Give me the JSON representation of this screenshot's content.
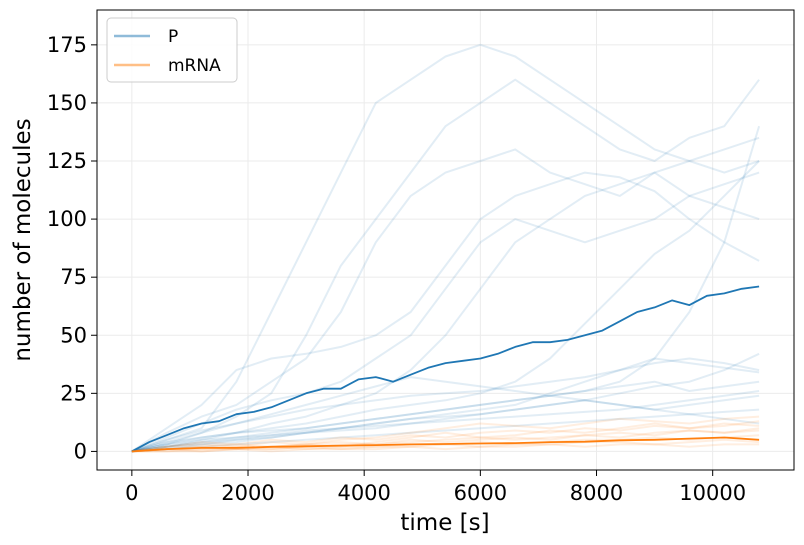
{
  "chart_data": {
    "type": "line",
    "xlabel": "time [s]",
    "ylabel": "number of molecules",
    "xlim": [
      -600,
      11400
    ],
    "ylim": [
      -8,
      190
    ],
    "xticks": [
      0,
      2000,
      4000,
      6000,
      8000,
      10000
    ],
    "yticks": [
      0,
      25,
      50,
      75,
      100,
      125,
      150,
      175
    ],
    "grid": true,
    "legend_position": "top-left",
    "legend": [
      {
        "label": "P",
        "color": "#1f77b4"
      },
      {
        "label": "mRNA",
        "color": "#ff7f0e"
      }
    ],
    "series": [
      {
        "name": "P",
        "kind": "mean",
        "color": "#1f77b4",
        "x": [
          0,
          300,
          600,
          900,
          1200,
          1500,
          1800,
          2100,
          2400,
          2700,
          3000,
          3300,
          3600,
          3900,
          4200,
          4500,
          4800,
          5100,
          5400,
          5700,
          6000,
          6300,
          6600,
          6900,
          7200,
          7500,
          7800,
          8100,
          8400,
          8700,
          9000,
          9300,
          9600,
          9900,
          10200,
          10500,
          10800
        ],
        "y": [
          0,
          4,
          7,
          10,
          12,
          13,
          16,
          17,
          19,
          22,
          25,
          27,
          27,
          31,
          32,
          30,
          33,
          36,
          38,
          39,
          40,
          42,
          45,
          47,
          47,
          48,
          50,
          52,
          56,
          60,
          62,
          65,
          63,
          67,
          68,
          70,
          71
        ]
      },
      {
        "name": "mRNA",
        "kind": "mean",
        "color": "#ff7f0e",
        "x": [
          0,
          600,
          1200,
          1800,
          2400,
          3000,
          3600,
          4200,
          4800,
          5400,
          6000,
          6600,
          7200,
          7800,
          8400,
          9000,
          9600,
          10200,
          10800
        ],
        "y": [
          0,
          1,
          1.5,
          1.5,
          2,
          2.2,
          2.5,
          2.7,
          3,
          3.2,
          3.4,
          3.6,
          4,
          4.2,
          4.8,
          5,
          5.5,
          6,
          5
        ]
      },
      {
        "name": "P",
        "kind": "trajectories",
        "color": "#1f77b4",
        "x": [
          0,
          600,
          1200,
          1800,
          2400,
          3000,
          3600,
          4200,
          4800,
          5400,
          6000,
          6600,
          7200,
          7800,
          8400,
          9000,
          9600,
          10200,
          10800
        ],
        "values": [
          [
            0,
            5,
            10,
            30,
            60,
            90,
            120,
            150,
            160,
            170,
            175,
            170,
            160,
            150,
            140,
            130,
            125,
            120,
            125
          ],
          [
            0,
            3,
            8,
            15,
            25,
            50,
            80,
            100,
            120,
            140,
            150,
            160,
            150,
            140,
            130,
            125,
            135,
            140,
            160
          ],
          [
            0,
            8,
            15,
            20,
            30,
            40,
            60,
            90,
            110,
            120,
            125,
            130,
            120,
            115,
            110,
            120,
            125,
            130,
            135
          ],
          [
            0,
            2,
            5,
            8,
            12,
            15,
            20,
            25,
            35,
            50,
            70,
            90,
            100,
            110,
            115,
            120,
            110,
            105,
            100
          ],
          [
            0,
            6,
            12,
            18,
            22,
            25,
            30,
            40,
            50,
            70,
            90,
            100,
            95,
            90,
            95,
            100,
            110,
            115,
            120
          ],
          [
            0,
            4,
            6,
            8,
            10,
            12,
            15,
            18,
            20,
            22,
            25,
            30,
            40,
            55,
            70,
            85,
            95,
            110,
            125
          ],
          [
            0,
            10,
            20,
            35,
            40,
            42,
            45,
            50,
            60,
            80,
            100,
            110,
            115,
            120,
            118,
            112,
            100,
            90,
            82
          ],
          [
            0,
            3,
            5,
            6,
            7,
            9,
            10,
            12,
            14,
            15,
            16,
            18,
            20,
            22,
            25,
            28,
            30,
            35,
            42
          ],
          [
            0,
            2,
            4,
            6,
            8,
            10,
            12,
            14,
            16,
            18,
            20,
            22,
            24,
            26,
            30,
            40,
            60,
            90,
            140
          ],
          [
            0,
            5,
            9,
            12,
            15,
            18,
            20,
            22,
            24,
            25,
            26,
            28,
            30,
            32,
            35,
            38,
            40,
            38,
            35
          ],
          [
            0,
            1,
            3,
            5,
            7,
            8,
            10,
            11,
            12,
            13,
            14,
            15,
            16,
            17,
            18,
            20,
            22,
            24,
            26
          ],
          [
            0,
            2,
            4,
            5,
            6,
            8,
            9,
            10,
            12,
            14,
            16,
            18,
            20,
            22,
            20,
            18,
            20,
            22,
            24
          ],
          [
            0,
            3,
            6,
            8,
            9,
            10,
            12,
            14,
            16,
            18,
            20,
            22,
            24,
            26,
            28,
            30,
            26,
            28,
            30
          ],
          [
            0,
            1,
            2,
            3,
            4,
            5,
            6,
            7,
            8,
            9,
            10,
            11,
            12,
            13,
            14,
            15,
            16,
            17,
            18
          ],
          [
            0,
            2,
            3,
            4,
            6,
            8,
            10,
            12,
            14,
            16,
            18,
            20,
            25,
            30,
            35,
            40,
            38,
            36,
            34
          ],
          [
            0,
            4,
            8,
            12,
            16,
            20,
            24,
            28,
            32,
            30,
            28,
            26,
            24,
            22,
            20,
            18,
            16,
            14,
            12
          ]
        ]
      },
      {
        "name": "mRNA",
        "kind": "trajectories",
        "color": "#ff7f0e",
        "x": [
          0,
          600,
          1200,
          1800,
          2400,
          3000,
          3600,
          4200,
          4800,
          5400,
          6000,
          6600,
          7200,
          7800,
          8400,
          9000,
          9600,
          10200,
          10800
        ],
        "values": [
          [
            0,
            2,
            3,
            2,
            4,
            3,
            5,
            6,
            8,
            10,
            12,
            11,
            10,
            12,
            14,
            13,
            12,
            14,
            15
          ],
          [
            0,
            1,
            2,
            1,
            2,
            3,
            2,
            4,
            6,
            8,
            6,
            7,
            9,
            8,
            10,
            12,
            10,
            11,
            13
          ],
          [
            0,
            1,
            1,
            2,
            1,
            2,
            3,
            3,
            4,
            5,
            6,
            5,
            6,
            7,
            6,
            8,
            9,
            8,
            10
          ],
          [
            0,
            0,
            1,
            1,
            2,
            1,
            2,
            2,
            3,
            3,
            4,
            3,
            4,
            5,
            5,
            6,
            5,
            6,
            7
          ],
          [
            0,
            1,
            0,
            1,
            1,
            2,
            1,
            2,
            2,
            3,
            2,
            3,
            3,
            4,
            4,
            3,
            4,
            5,
            4
          ],
          [
            0,
            2,
            4,
            3,
            5,
            4,
            6,
            5,
            7,
            6,
            8,
            9,
            8,
            10,
            9,
            11,
            10,
            12,
            11
          ],
          [
            0,
            0,
            0,
            1,
            0,
            1,
            1,
            1,
            2,
            1,
            2,
            2,
            3,
            2,
            3,
            3,
            2,
            3,
            3
          ],
          [
            0,
            1,
            2,
            3,
            2,
            3,
            4,
            3,
            5,
            4,
            5,
            6,
            5,
            7,
            8,
            7,
            9,
            8,
            9
          ]
        ]
      }
    ]
  }
}
